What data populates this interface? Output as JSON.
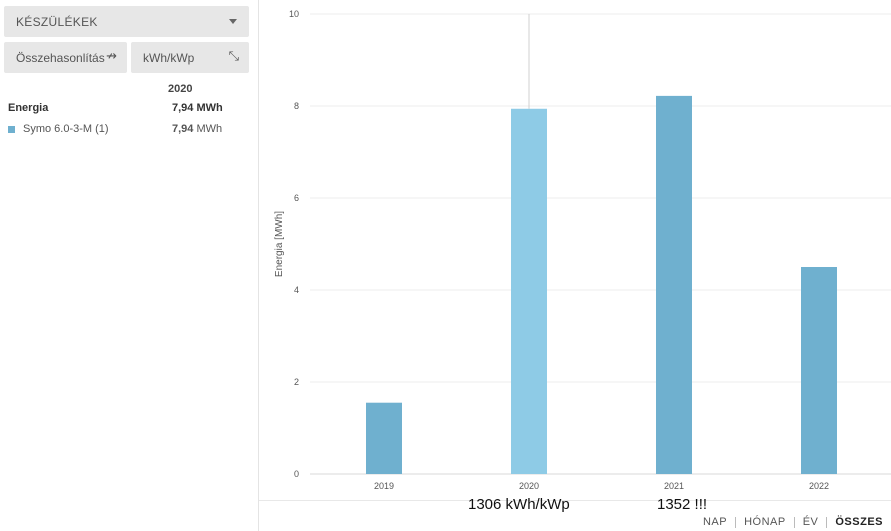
{
  "sidebar": {
    "dropdown_label": "KÉSZÜLÉKEK",
    "compare_label": "Összehasonlítás",
    "compare_icon": "↛",
    "unit_label": "kWh/kWp",
    "unit_icon": "⤡",
    "column_year": "2020",
    "energy_label": "Energia",
    "energy_value": "7,94",
    "energy_unit": "MWh",
    "device_name": "Symo 6.0-3-M (1)",
    "device_value": "7,94",
    "device_unit": "MWh",
    "device_color": "#6fb0cf"
  },
  "chart_data": {
    "type": "bar",
    "categories": [
      "2019",
      "2020",
      "2021",
      "2022"
    ],
    "values": [
      1.55,
      7.94,
      8.22,
      4.5
    ],
    "ylabel": "Energia [MWh]",
    "ylim": [
      0,
      10
    ],
    "yticks": [
      0,
      2,
      4,
      6,
      8,
      10
    ],
    "grid": true,
    "bar_color": "#6fb0cf",
    "highlight_color": "#8ecbe6",
    "highlight_index": 1
  },
  "notes": {
    "n2020": "1306 kWh/kWp",
    "n2021": "1352 !!!"
  },
  "tabs": [
    "NAP",
    "HÓNAP",
    "ÉV",
    "ÖSSZES"
  ]
}
